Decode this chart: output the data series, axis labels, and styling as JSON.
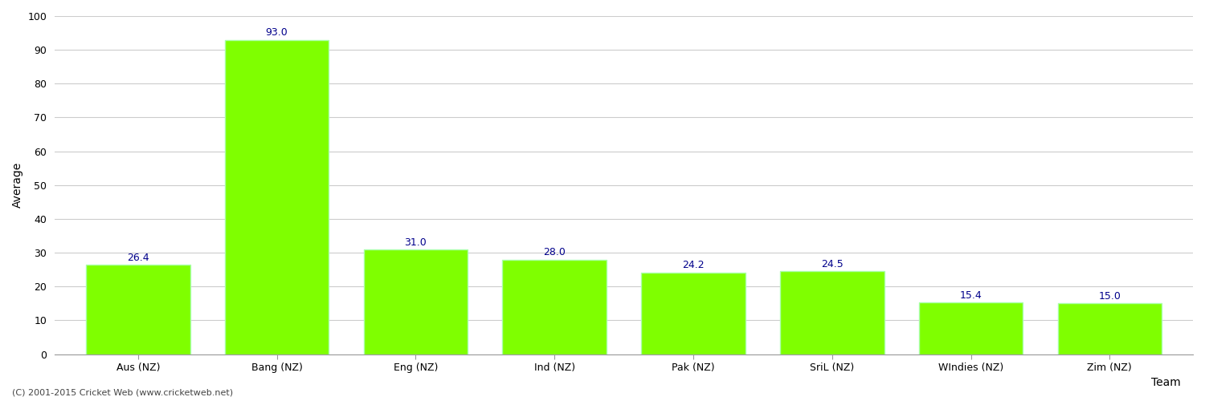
{
  "categories": [
    "Aus (NZ)",
    "Bang (NZ)",
    "Eng (NZ)",
    "Ind (NZ)",
    "Pak (NZ)",
    "SriL (NZ)",
    "WIndies (NZ)",
    "Zim (NZ)"
  ],
  "values": [
    26.4,
    93.0,
    31.0,
    28.0,
    24.2,
    24.5,
    15.4,
    15.0
  ],
  "bar_color": "#7FFF00",
  "bar_edge_color": "#AAFFAA",
  "value_label_color": "#00008B",
  "xlabel": "Team",
  "ylabel": "Average",
  "ylim": [
    0,
    100
  ],
  "yticks": [
    0,
    10,
    20,
    30,
    40,
    50,
    60,
    70,
    80,
    90,
    100
  ],
  "background_color": "#FFFFFF",
  "grid_color": "#CCCCCC",
  "footer_text": "(C) 2001-2015 Cricket Web (www.cricketweb.net)",
  "value_fontsize": 9,
  "axis_label_fontsize": 10,
  "tick_fontsize": 9,
  "footer_fontsize": 8
}
